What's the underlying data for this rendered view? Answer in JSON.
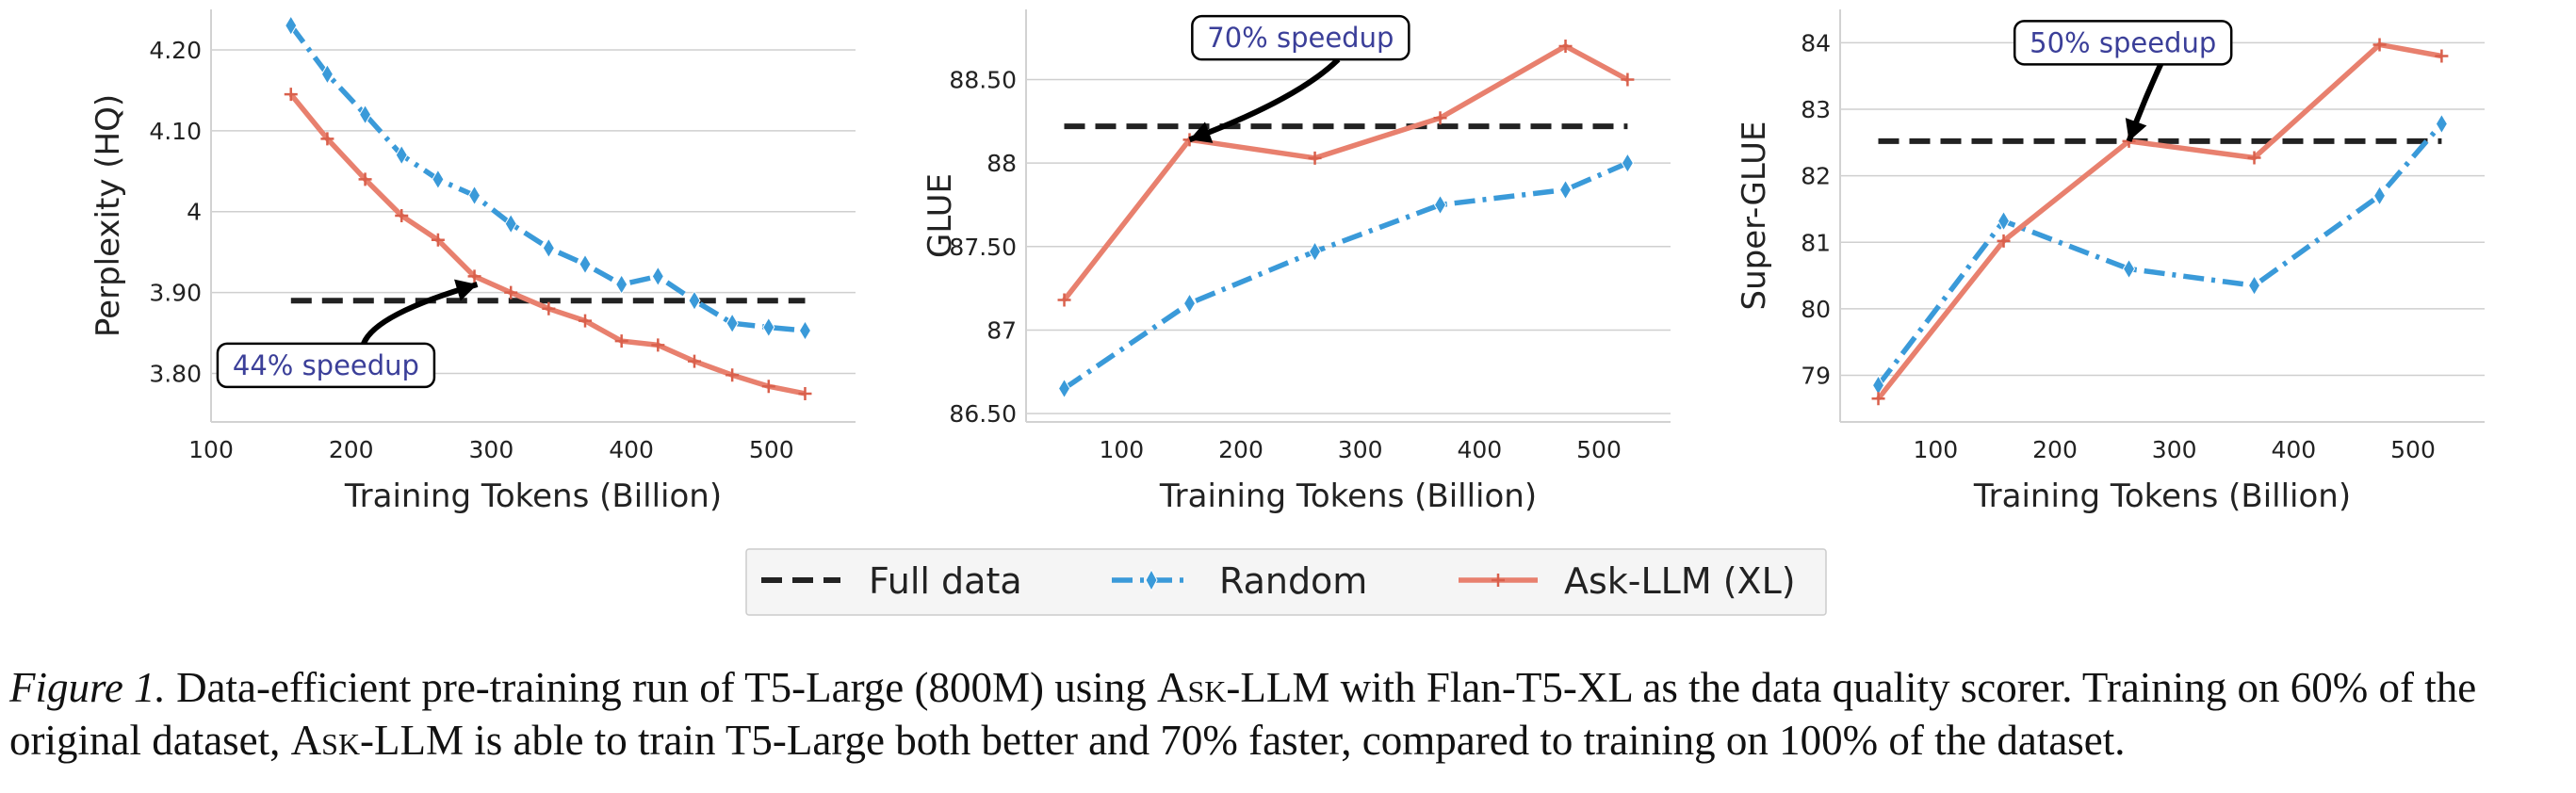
{
  "figure": {
    "legend": [
      {
        "label": "Full data",
        "style": "dashed",
        "color": "#222222"
      },
      {
        "label": "Random",
        "style": "dashdot",
        "marker": "diamond",
        "color": "#3a9ad9"
      },
      {
        "label": "Ask-LLM (XL)",
        "style": "solid",
        "marker": "plus",
        "color": "#e8806e"
      }
    ],
    "caption": {
      "label": "Figure 1.",
      "part1": " Data-efficient pre-training run of T5-Large (800M) using ",
      "method1": "Ask-LLM",
      "part2": " with Flan-T5-XL as the data quality scorer. Training on 60% of the original dataset, ",
      "method2": "Ask-LLM",
      "part3": " is able to train T5-Large both better and 70% faster, compared to training on 100% of the dataset."
    }
  },
  "chart_data": [
    {
      "type": "line",
      "xlabel": "Training Tokens (Billion)",
      "ylabel": "Perplexity (HQ)",
      "xlim": [
        100,
        560
      ],
      "ylim": [
        3.74,
        4.25
      ],
      "xticks": [
        100,
        200,
        300,
        400,
        500
      ],
      "xtick_labels": [
        "100",
        "200",
        "300",
        "400",
        "500"
      ],
      "yticks": [
        3.8,
        3.9,
        4.0,
        4.1,
        4.2
      ],
      "ytick_labels": [
        "3.80",
        "3.90",
        "4",
        "4.10",
        "4.20"
      ],
      "grid": "horizontal",
      "annotation": {
        "text": "44% speedup",
        "box_at": [
          182,
          3.81
        ],
        "arrow_to": [
          290,
          3.91
        ]
      },
      "series": [
        {
          "name": "Full data",
          "style": "dashed",
          "x": [
            157,
            524
          ],
          "y": [
            3.89,
            3.89
          ]
        },
        {
          "name": "Random",
          "style": "dashdot",
          "marker": "diamond",
          "x": [
            157,
            183,
            210,
            236,
            262,
            288,
            314,
            341,
            367,
            393,
            419,
            445,
            472,
            498,
            524
          ],
          "y": [
            4.23,
            4.17,
            4.12,
            4.07,
            4.04,
            4.02,
            3.985,
            3.955,
            3.935,
            3.91,
            3.92,
            3.89,
            3.862,
            3.857,
            3.853
          ]
        },
        {
          "name": "Ask-LLM (XL)",
          "style": "solid",
          "marker": "plus",
          "x": [
            157,
            183,
            210,
            236,
            262,
            288,
            314,
            341,
            367,
            393,
            419,
            445,
            472,
            498,
            524
          ],
          "y": [
            4.145,
            4.09,
            4.04,
            3.995,
            3.965,
            3.92,
            3.9,
            3.88,
            3.865,
            3.84,
            3.835,
            3.815,
            3.798,
            3.784,
            3.775
          ]
        }
      ]
    },
    {
      "type": "line",
      "xlabel": "Training Tokens (Billion)",
      "ylabel": "GLUE",
      "xlim": [
        20,
        560
      ],
      "ylim": [
        86.45,
        88.92
      ],
      "xticks": [
        100,
        200,
        300,
        400,
        500
      ],
      "xtick_labels": [
        "100",
        "200",
        "300",
        "400",
        "500"
      ],
      "yticks": [
        86.5,
        87.0,
        87.5,
        88.0,
        88.5
      ],
      "ytick_labels": [
        "86.50",
        "87",
        "87.50",
        "88",
        "88.50"
      ],
      "grid": "horizontal",
      "annotation": {
        "text": "70% speedup",
        "box_at": [
          250,
          88.75
        ],
        "arrow_to": [
          157,
          88.14
        ]
      },
      "series": [
        {
          "name": "Full data",
          "style": "dashed",
          "x": [
            52,
            524
          ],
          "y": [
            88.22,
            88.22
          ]
        },
        {
          "name": "Random",
          "style": "dashdot",
          "marker": "diamond",
          "x": [
            52,
            157,
            262,
            367,
            472,
            524
          ],
          "y": [
            86.65,
            87.16,
            87.47,
            87.75,
            87.84,
            88.0
          ]
        },
        {
          "name": "Ask-LLM (XL)",
          "style": "solid",
          "marker": "plus",
          "x": [
            52,
            157,
            262,
            367,
            472,
            524
          ],
          "y": [
            87.18,
            88.14,
            88.03,
            88.27,
            88.7,
            88.5
          ]
        }
      ]
    },
    {
      "type": "line",
      "xlabel": "Training Tokens (Billion)",
      "ylabel": "Super-GLUE",
      "xlim": [
        20,
        560
      ],
      "ylim": [
        78.3,
        84.5
      ],
      "xticks": [
        100,
        200,
        300,
        400,
        500
      ],
      "xtick_labels": [
        "100",
        "200",
        "300",
        "400",
        "500"
      ],
      "yticks": [
        79,
        80,
        81,
        82,
        83,
        84
      ],
      "ytick_labels": [
        "79",
        "80",
        "81",
        "82",
        "83",
        "84"
      ],
      "grid": "horizontal",
      "annotation": {
        "text": "50% speedup",
        "box_at": [
          257,
          84.0
        ],
        "arrow_to": [
          262,
          82.52
        ]
      },
      "series": [
        {
          "name": "Full data",
          "style": "dashed",
          "x": [
            52,
            524
          ],
          "y": [
            82.52,
            82.52
          ]
        },
        {
          "name": "Random",
          "style": "dashdot",
          "marker": "diamond",
          "x": [
            52,
            157,
            262,
            367,
            472,
            524
          ],
          "y": [
            78.85,
            81.32,
            80.6,
            80.35,
            81.7,
            82.78
          ]
        },
        {
          "name": "Ask-LLM (XL)",
          "style": "solid",
          "marker": "plus",
          "x": [
            52,
            157,
            262,
            367,
            472,
            524
          ],
          "y": [
            78.65,
            81.02,
            82.52,
            82.27,
            83.97,
            83.8
          ]
        }
      ]
    }
  ]
}
